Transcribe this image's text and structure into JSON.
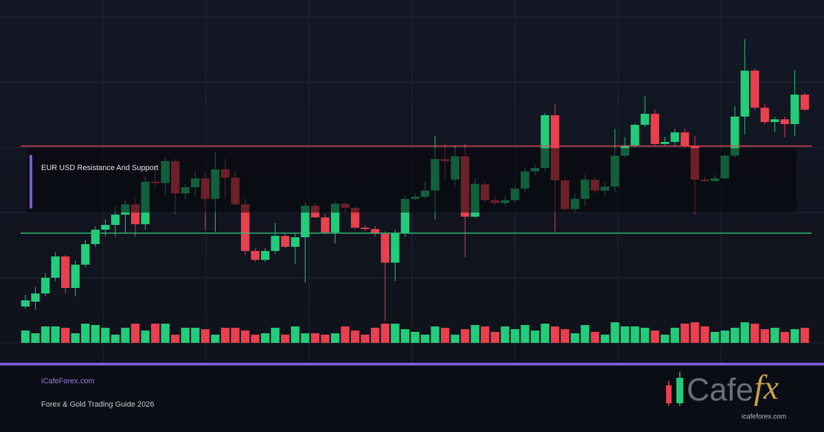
{
  "chart_data": {
    "type": "candlestick",
    "annotation": "EUR USD Resistance And Support",
    "open": [
      53,
      60,
      72,
      95,
      126,
      80,
      114,
      144,
      165,
      172,
      187,
      202,
      173,
      235,
      233,
      265,
      218,
      227,
      240,
      210,
      253,
      241,
      202,
      134,
      121,
      134,
      156,
      140,
      154,
      200,
      183,
      161,
      203,
      197,
      168,
      166,
      159,
      117,
      160,
      210,
      213,
      222,
      268,
      238,
      272,
      184,
      231,
      208,
      204,
      208,
      225,
      250,
      255,
      332,
      237,
      195,
      210,
      238,
      222,
      228,
      273,
      288,
      318,
      334,
      290,
      293,
      307,
      287,
      238,
      236,
      240,
      273,
      330,
      397,
      343,
      322,
      326,
      319,
      362
    ],
    "high": [
      70,
      82,
      102,
      132,
      128,
      120,
      150,
      170,
      180,
      200,
      208,
      210,
      242,
      260,
      270,
      268,
      232,
      250,
      250,
      278,
      268,
      250,
      210,
      138,
      138,
      175,
      160,
      160,
      205,
      205,
      188,
      207,
      205,
      200,
      172,
      170,
      163,
      165,
      215,
      218,
      235,
      302,
      290,
      288,
      290,
      240,
      235,
      212,
      215,
      230,
      255,
      260,
      335,
      348,
      242,
      217,
      245,
      242,
      235,
      312,
      300,
      320,
      360,
      340,
      300,
      312,
      312,
      302,
      242,
      245,
      275,
      345,
      443,
      400,
      348,
      330,
      330,
      398,
      365
    ],
    "low": [
      50,
      48,
      68,
      90,
      72,
      68,
      110,
      140,
      155,
      155,
      160,
      155,
      165,
      225,
      215,
      188,
      210,
      215,
      165,
      162,
      210,
      200,
      128,
      118,
      118,
      130,
      138,
      115,
      88,
      182,
      160,
      145,
      190,
      166,
      163,
      155,
      32,
      90,
      155,
      208,
      210,
      180,
      240,
      230,
      125,
      182,
      205,
      200,
      200,
      205,
      220,
      245,
      250,
      162,
      192,
      190,
      200,
      218,
      215,
      220,
      270,
      285,
      315,
      288,
      288,
      288,
      285,
      188,
      234,
      235,
      238,
      270,
      304,
      340,
      318,
      307,
      300,
      302,
      338
    ],
    "close": [
      62,
      72,
      95,
      126,
      80,
      114,
      144,
      165,
      172,
      187,
      202,
      173,
      235,
      233,
      265,
      218,
      227,
      240,
      210,
      253,
      241,
      202,
      134,
      121,
      134,
      156,
      140,
      154,
      200,
      183,
      161,
      203,
      197,
      168,
      166,
      159,
      117,
      160,
      210,
      213,
      222,
      268,
      265,
      272,
      184,
      232,
      208,
      204,
      208,
      225,
      250,
      255,
      332,
      237,
      195,
      210,
      238,
      222,
      228,
      273,
      288,
      318,
      334,
      290,
      293,
      307,
      287,
      238,
      236,
      240,
      273,
      330,
      397,
      343,
      322,
      326,
      319,
      362,
      340
    ],
    "volume": [
      18,
      14,
      24,
      24,
      22,
      14,
      28,
      26,
      22,
      12,
      22,
      28,
      18,
      28,
      28,
      12,
      22,
      22,
      20,
      12,
      22,
      22,
      18,
      12,
      14,
      22,
      12,
      24,
      14,
      14,
      12,
      14,
      24,
      18,
      12,
      22,
      28,
      28,
      20,
      16,
      12,
      24,
      22,
      12,
      20,
      26,
      24,
      16,
      24,
      20,
      26,
      18,
      28,
      24,
      20,
      14,
      26,
      16,
      12,
      30,
      24,
      24,
      22,
      18,
      12,
      22,
      28,
      30,
      24,
      16,
      18,
      22,
      30,
      28,
      20,
      22,
      16,
      20,
      22
    ],
    "ylim": [
      0,
      475
    ],
    "volume_lim": [
      0,
      40
    ],
    "resistance": 287,
    "support": 160,
    "up_color": "#22cc7a",
    "down_color": "#e8404f",
    "resistance_color": "#e0454f",
    "support_color": "#2fbf71"
  },
  "footer": {
    "site": "iCafeForex.com",
    "tagline": "Forex & Gold Trading Guide 2026"
  },
  "logo": {
    "text": "Cafe",
    "accent": "fx",
    "url": "icafeforex.com"
  }
}
